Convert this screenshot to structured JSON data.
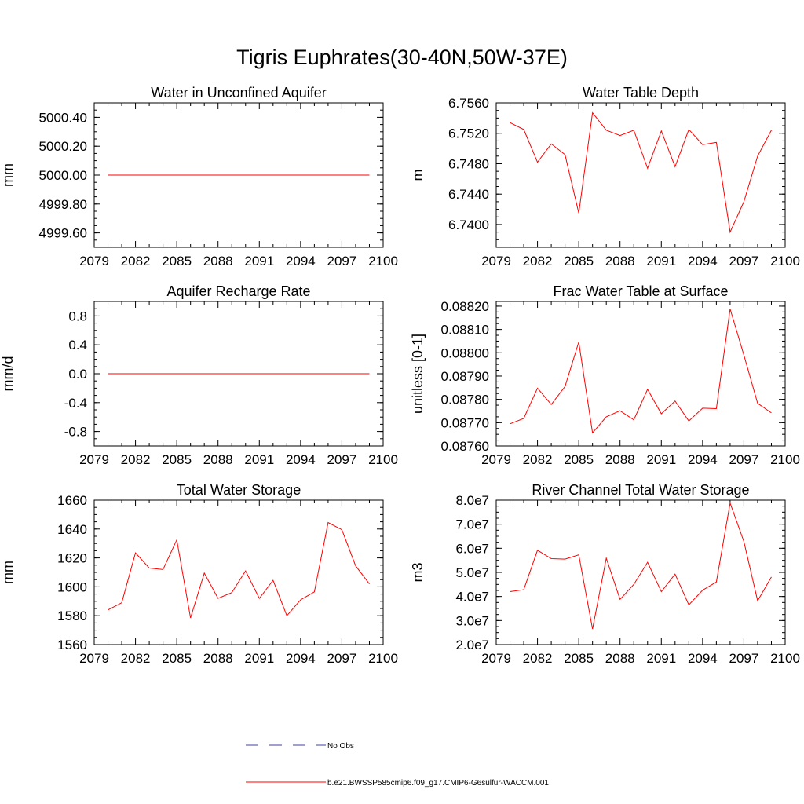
{
  "title": "Tigris Euphrates(30-40N,50W-37E)",
  "colors": {
    "model": "#ff0000",
    "obs": "#4040a0"
  },
  "legend": {
    "obs_label": "No Obs",
    "model_label": "b.e21.BWSSP585cmip6.f09_g17.CMIP6-G6sulfur-WACCM.001"
  },
  "chart_data": [
    {
      "type": "line",
      "title": "Water in Unconfined Aquifer",
      "ylabel": "mm",
      "xlim": [
        2079,
        2100
      ],
      "ylim": [
        4999.5,
        5000.5
      ],
      "x_ticks": [
        2079,
        2082,
        2085,
        2088,
        2091,
        2094,
        2097,
        2100
      ],
      "x_tick_labels": [
        "2079",
        "2082",
        "2085",
        "2088",
        "2091",
        "2094",
        "2097",
        "2100"
      ],
      "y_ticks": [
        4999.6,
        4999.8,
        5000.0,
        5000.2,
        5000.4
      ],
      "y_tick_labels": [
        "4999.60",
        "4999.80",
        "5000.00",
        "5000.20",
        "5000.40"
      ],
      "x": [
        2080,
        2081,
        2082,
        2083,
        2084,
        2085,
        2086,
        2087,
        2088,
        2089,
        2090,
        2091,
        2092,
        2093,
        2094,
        2095,
        2096,
        2097,
        2098,
        2099
      ],
      "values": [
        5000,
        5000,
        5000,
        5000,
        5000,
        5000,
        5000,
        5000,
        5000,
        5000,
        5000,
        5000,
        5000,
        5000,
        5000,
        5000,
        5000,
        5000,
        5000,
        5000
      ]
    },
    {
      "type": "line",
      "title": "Water Table Depth",
      "ylabel": "m",
      "xlim": [
        2079,
        2100
      ],
      "ylim": [
        6.737,
        6.756
      ],
      "x_ticks": [
        2079,
        2082,
        2085,
        2088,
        2091,
        2094,
        2097,
        2100
      ],
      "x_tick_labels": [
        "2079",
        "2082",
        "2085",
        "2088",
        "2091",
        "2094",
        "2097",
        "2100"
      ],
      "y_ticks": [
        6.74,
        6.744,
        6.748,
        6.752,
        6.756
      ],
      "y_tick_labels": [
        "6.7400",
        "6.7440",
        "6.7480",
        "6.7520",
        "6.7560"
      ],
      "x": [
        2080,
        2081,
        2082,
        2083,
        2084,
        2085,
        2086,
        2087,
        2088,
        2089,
        2090,
        2091,
        2092,
        2093,
        2094,
        2095,
        2096,
        2097,
        2098,
        2099
      ],
      "values": [
        6.7534,
        6.7525,
        6.7482,
        6.7506,
        6.7492,
        6.7415,
        6.7547,
        6.7524,
        6.7517,
        6.7524,
        6.7474,
        6.7523,
        6.7476,
        6.7525,
        6.7505,
        6.7508,
        6.739,
        6.743,
        6.749,
        6.7524
      ]
    },
    {
      "type": "line",
      "title": "Aquifer Recharge Rate",
      "ylabel": "mm/d",
      "xlim": [
        2079,
        2100
      ],
      "ylim": [
        -1.0,
        1.0
      ],
      "x_ticks": [
        2079,
        2082,
        2085,
        2088,
        2091,
        2094,
        2097,
        2100
      ],
      "x_tick_labels": [
        "2079",
        "2082",
        "2085",
        "2088",
        "2091",
        "2094",
        "2097",
        "2100"
      ],
      "y_ticks": [
        -0.8,
        -0.4,
        0.0,
        0.4,
        0.8
      ],
      "y_tick_labels": [
        "-0.8",
        "-0.4",
        "0.0",
        "0.4",
        "0.8"
      ],
      "x": [
        2080,
        2081,
        2082,
        2083,
        2084,
        2085,
        2086,
        2087,
        2088,
        2089,
        2090,
        2091,
        2092,
        2093,
        2094,
        2095,
        2096,
        2097,
        2098,
        2099
      ],
      "values": [
        0,
        0,
        0,
        0,
        0,
        0,
        0,
        0,
        0,
        0,
        0,
        0,
        0,
        0,
        0,
        0,
        0,
        0,
        0,
        0
      ]
    },
    {
      "type": "line",
      "title": "Frac Water Table at Surface",
      "ylabel": "unitless [0-1]",
      "xlim": [
        2079,
        2100
      ],
      "ylim": [
        0.0876,
        0.08822
      ],
      "x_ticks": [
        2079,
        2082,
        2085,
        2088,
        2091,
        2094,
        2097,
        2100
      ],
      "x_tick_labels": [
        "2079",
        "2082",
        "2085",
        "2088",
        "2091",
        "2094",
        "2097",
        "2100"
      ],
      "y_ticks": [
        0.0876,
        0.0877,
        0.0878,
        0.0879,
        0.088,
        0.0881,
        0.0882
      ],
      "y_tick_labels": [
        "0.08760",
        "0.08770",
        "0.08780",
        "0.08790",
        "0.08800",
        "0.08810",
        "0.08820"
      ],
      "x": [
        2080,
        2081,
        2082,
        2083,
        2084,
        2085,
        2086,
        2087,
        2088,
        2089,
        2090,
        2091,
        2092,
        2093,
        2094,
        2095,
        2096,
        2097,
        2098,
        2099
      ],
      "values": [
        0.087695,
        0.087718,
        0.087848,
        0.087778,
        0.087855,
        0.088046,
        0.087656,
        0.087725,
        0.087751,
        0.087712,
        0.087843,
        0.087738,
        0.087793,
        0.087707,
        0.087762,
        0.08776,
        0.088188,
        0.08799,
        0.087783,
        0.087742
      ]
    },
    {
      "type": "line",
      "title": "Total Water Storage",
      "ylabel": "mm",
      "xlim": [
        2079,
        2100
      ],
      "ylim": [
        1560,
        1660
      ],
      "x_ticks": [
        2079,
        2082,
        2085,
        2088,
        2091,
        2094,
        2097,
        2100
      ],
      "x_tick_labels": [
        "2079",
        "2082",
        "2085",
        "2088",
        "2091",
        "2094",
        "2097",
        "2100"
      ],
      "y_ticks": [
        1560,
        1580,
        1600,
        1620,
        1640,
        1660
      ],
      "y_tick_labels": [
        "1560",
        "1580",
        "1600",
        "1620",
        "1640",
        "1660"
      ],
      "x": [
        2080,
        2081,
        2082,
        2083,
        2084,
        2085,
        2086,
        2087,
        2088,
        2089,
        2090,
        2091,
        2092,
        2093,
        2094,
        2095,
        2096,
        2097,
        2098,
        2099
      ],
      "values": [
        1584,
        1589,
        1623.5,
        1613,
        1612,
        1632.5,
        1578.5,
        1609.5,
        1592,
        1596,
        1611,
        1592,
        1604.5,
        1580,
        1591,
        1596.5,
        1644.5,
        1639.5,
        1614.5,
        1602
      ]
    },
    {
      "type": "line",
      "title": "River Channel Total Water Storage",
      "ylabel": "m3",
      "xlim": [
        2079,
        2100
      ],
      "ylim": [
        20000000,
        80000000
      ],
      "x_ticks": [
        2079,
        2082,
        2085,
        2088,
        2091,
        2094,
        2097,
        2100
      ],
      "x_tick_labels": [
        "2079",
        "2082",
        "2085",
        "2088",
        "2091",
        "2094",
        "2097",
        "2100"
      ],
      "y_ticks": [
        20000000,
        30000000,
        40000000,
        50000000,
        60000000,
        70000000,
        80000000
      ],
      "y_tick_labels": [
        "2.0e7",
        "3.0e7",
        "4.0e7",
        "5.0e7",
        "6.0e7",
        "7.0e7",
        "8.0e7"
      ],
      "x": [
        2080,
        2081,
        2082,
        2083,
        2084,
        2085,
        2086,
        2087,
        2088,
        2089,
        2090,
        2091,
        2092,
        2093,
        2094,
        2095,
        2096,
        2097,
        2098,
        2099
      ],
      "values": [
        42000000,
        42800000,
        59200000,
        55700000,
        55500000,
        57300000,
        26500000,
        55900000,
        38800000,
        45000000,
        54200000,
        42000000,
        49300000,
        36500000,
        42600000,
        46000000,
        78800000,
        62800000,
        38200000,
        48100000
      ]
    }
  ]
}
